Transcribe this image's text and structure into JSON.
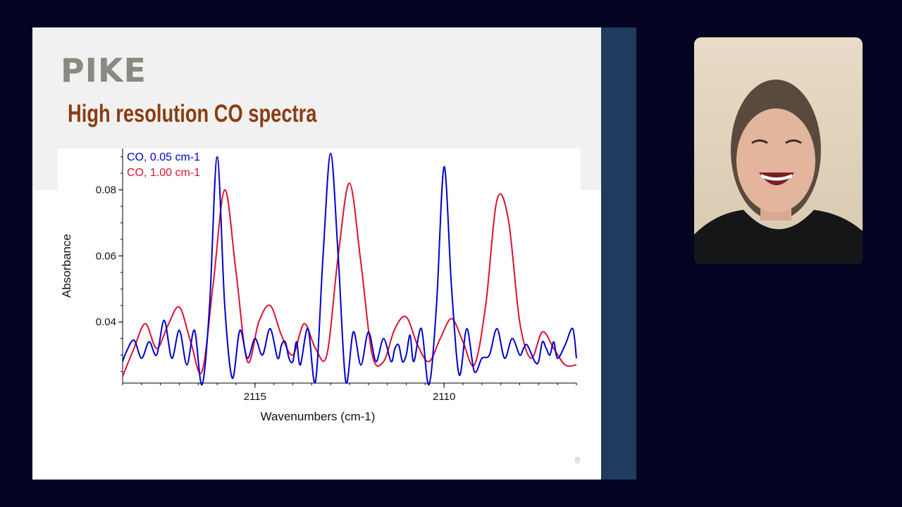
{
  "slide": {
    "logo": "PIKE",
    "title": "High resolution CO spectra",
    "page_number": "8"
  },
  "colors": {
    "background": "#050322",
    "slide_band": "#f1f1f1",
    "title": "#8b3d10",
    "logo": "#8a8a80",
    "side_stripe": "#1f3b5e",
    "series_high_res": "#0000cc",
    "series_low_res": "#dd1133"
  },
  "webcam": {
    "icon": "presenter-video-feed"
  },
  "chart_data": {
    "type": "line",
    "xlabel": "Wavenumbers (cm-1)",
    "ylabel": "Absorbance",
    "xlim": [
      2118.5,
      2106.5
    ],
    "ylim": [
      0.0215,
      0.0925
    ],
    "x_reversed": true,
    "xticks": [
      2115,
      2110
    ],
    "yticks": [
      0.04,
      0.06,
      0.08
    ],
    "ytick_labels": [
      "0.04",
      "0.06",
      "0.08"
    ],
    "xtick_labels": [
      "2115",
      "2110"
    ],
    "grid": false,
    "legend_placement": "top-left",
    "series": [
      {
        "name": "CO, 0.05 cm-1",
        "color": "#0000cc",
        "x": [
          2118.5,
          2118.4,
          2118.2,
          2118.0,
          2117.8,
          2117.6,
          2117.4,
          2117.2,
          2117.0,
          2116.8,
          2116.6,
          2116.4,
          2116.2,
          2116.0,
          2115.8,
          2115.6,
          2115.4,
          2115.2,
          2115.0,
          2114.8,
          2114.6,
          2114.4,
          2114.3,
          2114.2,
          2114.1,
          2114.0,
          2113.9,
          2113.8,
          2113.6,
          2113.4,
          2113.2,
          2113.0,
          2112.8,
          2112.6,
          2112.4,
          2112.2,
          2112.0,
          2111.8,
          2111.6,
          2111.4,
          2111.3,
          2111.2,
          2111.1,
          2111.0,
          2110.9,
          2110.8,
          2110.6,
          2110.4,
          2110.2,
          2110.0,
          2109.8,
          2109.6,
          2109.4,
          2109.2,
          2109.0,
          2108.8,
          2108.6,
          2108.4,
          2108.2,
          2108.0,
          2107.9,
          2107.8,
          2107.6,
          2107.5,
          2107.4,
          2107.3,
          2107.2,
          2107.1,
          2107.0,
          2106.8,
          2106.6,
          2106.5
        ],
        "y": [
          0.028,
          0.031,
          0.0345,
          0.029,
          0.034,
          0.03,
          0.0405,
          0.029,
          0.0375,
          0.027,
          0.0375,
          0.021,
          0.045,
          0.09,
          0.045,
          0.023,
          0.0375,
          0.029,
          0.035,
          0.03,
          0.038,
          0.029,
          0.033,
          0.034,
          0.029,
          0.028,
          0.034,
          0.027,
          0.038,
          0.022,
          0.06,
          0.091,
          0.06,
          0.022,
          0.037,
          0.027,
          0.037,
          0.028,
          0.035,
          0.028,
          0.032,
          0.033,
          0.028,
          0.03,
          0.036,
          0.028,
          0.038,
          0.021,
          0.045,
          0.087,
          0.05,
          0.024,
          0.038,
          0.025,
          0.029,
          0.03,
          0.038,
          0.029,
          0.035,
          0.03,
          0.032,
          0.033,
          0.028,
          0.028,
          0.034,
          0.032,
          0.03,
          0.034,
          0.029,
          0.033,
          0.038,
          0.029
        ]
      },
      {
        "name": "CO, 1.00 cm-1",
        "color": "#dd1133",
        "x": [
          2118.5,
          2118.2,
          2117.9,
          2117.6,
          2117.3,
          2117.0,
          2116.7,
          2116.4,
          2116.1,
          2115.8,
          2115.5,
          2115.2,
          2114.9,
          2114.6,
          2114.3,
          2114.0,
          2113.7,
          2113.4,
          2113.1,
          2112.8,
          2112.5,
          2112.2,
          2111.9,
          2111.6,
          2111.3,
          2111.0,
          2110.7,
          2110.4,
          2110.1,
          2109.8,
          2109.5,
          2109.2,
          2108.9,
          2108.6,
          2108.3,
          2108.0,
          2107.7,
          2107.4,
          2107.1,
          2106.8,
          2106.5
        ],
        "y": [
          0.0235,
          0.032,
          0.0395,
          0.032,
          0.039,
          0.0445,
          0.034,
          0.025,
          0.052,
          0.08,
          0.055,
          0.028,
          0.04,
          0.045,
          0.036,
          0.03,
          0.0395,
          0.032,
          0.03,
          0.06,
          0.082,
          0.058,
          0.03,
          0.028,
          0.038,
          0.0415,
          0.033,
          0.028,
          0.035,
          0.041,
          0.034,
          0.027,
          0.045,
          0.077,
          0.071,
          0.04,
          0.029,
          0.037,
          0.032,
          0.027,
          0.027
        ]
      }
    ]
  }
}
